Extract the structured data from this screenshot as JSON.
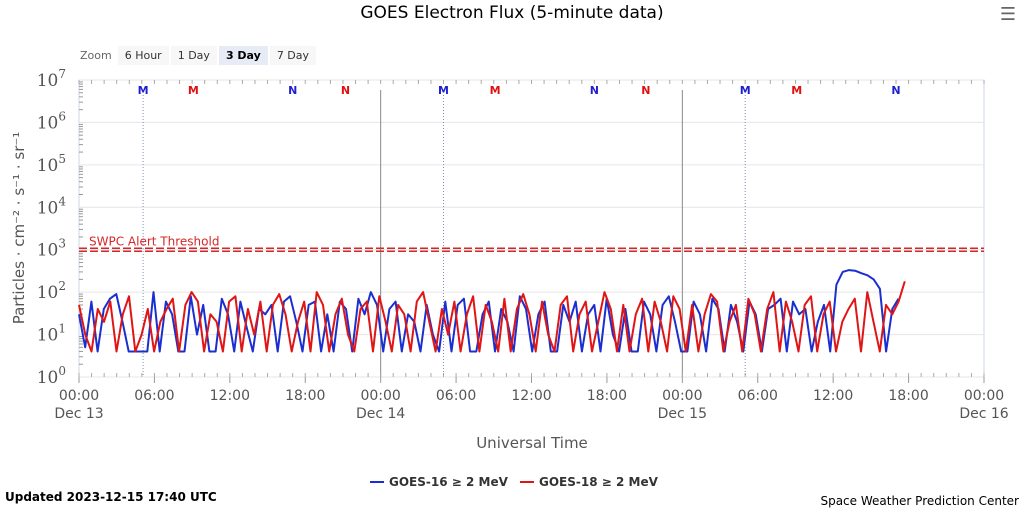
{
  "chart_data": {
    "type": "line",
    "title": "GOES Electron Flux (5-minute data)",
    "xlabel": "Universal Time",
    "ylabel": "Particles · cm⁻² · s⁻¹ · sr⁻¹",
    "yscale": "log",
    "ylim": [
      1,
      10000000
    ],
    "xlim_hours": [
      0,
      72
    ],
    "x_ticks": [
      {
        "h": 0,
        "l1": "00:00",
        "l2": "Dec 13"
      },
      {
        "h": 6,
        "l1": "06:00",
        "l2": ""
      },
      {
        "h": 12,
        "l1": "12:00",
        "l2": ""
      },
      {
        "h": 18,
        "l1": "18:00",
        "l2": ""
      },
      {
        "h": 24,
        "l1": "00:00",
        "l2": "Dec 14"
      },
      {
        "h": 30,
        "l1": "06:00",
        "l2": ""
      },
      {
        "h": 36,
        "l1": "12:00",
        "l2": ""
      },
      {
        "h": 42,
        "l1": "18:00",
        "l2": ""
      },
      {
        "h": 48,
        "l1": "00:00",
        "l2": "Dec 15"
      },
      {
        "h": 54,
        "l1": "06:00",
        "l2": ""
      },
      {
        "h": 60,
        "l1": "12:00",
        "l2": ""
      },
      {
        "h": 66,
        "l1": "18:00",
        "l2": ""
      },
      {
        "h": 72,
        "l1": "00:00",
        "l2": "Dec 16"
      }
    ],
    "y_ticks": [
      {
        "v": 1,
        "e": "0"
      },
      {
        "v": 10,
        "e": "1"
      },
      {
        "v": 100,
        "e": "2"
      },
      {
        "v": 1000,
        "e": "3"
      },
      {
        "v": 10000,
        "e": "4"
      },
      {
        "v": 100000,
        "e": "5"
      },
      {
        "v": 1000000,
        "e": "6"
      },
      {
        "v": 10000000,
        "e": "7"
      }
    ],
    "threshold": {
      "value": 1000,
      "label": "SWPC Alert Threshold",
      "color": "#d62728"
    },
    "markers": [
      {
        "h": 5.1,
        "t": "M",
        "color": "#1f1fd0",
        "line": true
      },
      {
        "h": 9.1,
        "t": "M",
        "color": "#e01010"
      },
      {
        "h": 17,
        "t": "N",
        "color": "#1f1fd0"
      },
      {
        "h": 21.2,
        "t": "N",
        "color": "#e01010"
      },
      {
        "h": 29,
        "t": "M",
        "color": "#1f1fd0",
        "line": true
      },
      {
        "h": 33.1,
        "t": "M",
        "color": "#e01010"
      },
      {
        "h": 41,
        "t": "N",
        "color": "#1f1fd0"
      },
      {
        "h": 45.1,
        "t": "N",
        "color": "#e01010"
      },
      {
        "h": 53,
        "t": "M",
        "color": "#1f1fd0",
        "line": true
      },
      {
        "h": 57.1,
        "t": "M",
        "color": "#e01010"
      },
      {
        "h": 65,
        "t": "N",
        "color": "#1f1fd0"
      }
    ],
    "series": [
      {
        "name": "GOES-16 ≥ 2 MeV",
        "color": "#1a2fd0",
        "x_start": 0,
        "x_end": 65.2,
        "values": [
          30,
          5,
          60,
          4,
          40,
          70,
          90,
          20,
          4,
          4,
          4,
          4,
          100,
          4,
          60,
          30,
          4,
          4,
          80,
          10,
          50,
          4,
          4,
          70,
          30,
          4,
          60,
          15,
          4,
          40,
          30,
          50,
          4,
          60,
          80,
          20,
          4,
          50,
          60,
          4,
          30,
          4,
          60,
          40,
          4,
          70,
          30,
          100,
          50,
          4,
          40,
          60,
          4,
          30,
          20,
          4,
          50,
          10,
          4,
          60,
          4,
          50,
          70,
          4,
          4,
          30,
          60,
          4,
          40,
          20,
          4,
          80,
          40,
          4,
          30,
          60,
          4,
          4,
          50,
          20,
          60,
          4,
          30,
          50,
          4,
          70,
          10,
          4,
          40,
          4,
          4,
          60,
          30,
          4,
          50,
          80,
          20,
          4,
          4,
          60,
          30,
          4,
          70,
          40,
          4,
          50,
          20,
          4,
          60,
          30,
          4,
          40,
          50,
          70,
          4,
          60,
          30,
          40,
          4,
          20,
          50,
          4,
          150,
          300,
          330,
          320,
          280,
          250,
          200,
          120,
          4,
          40,
          70
        ]
      },
      {
        "name": "GOES-18 ≥ 2 MeV",
        "color": "#e01515",
        "x_start": 0,
        "x_end": 65.7,
        "values": [
          50,
          10,
          4,
          40,
          20,
          60,
          4,
          30,
          80,
          4,
          10,
          40,
          4,
          20,
          40,
          70,
          4,
          50,
          100,
          60,
          4,
          30,
          20,
          4,
          60,
          80,
          4,
          40,
          10,
          60,
          4,
          50,
          90,
          30,
          4,
          20,
          60,
          4,
          100,
          50,
          4,
          30,
          70,
          10,
          4,
          40,
          60,
          4,
          80,
          20,
          4,
          50,
          30,
          4,
          60,
          100,
          20,
          4,
          40,
          10,
          60,
          4,
          30,
          80,
          4,
          50,
          20,
          4,
          70,
          4,
          40,
          90,
          30,
          4,
          60,
          10,
          4,
          50,
          80,
          4,
          30,
          60,
          4,
          20,
          100,
          40,
          4,
          50,
          4,
          30,
          70,
          4,
          60,
          20,
          4,
          80,
          40,
          4,
          50,
          4,
          30,
          90,
          60,
          4,
          20,
          50,
          4,
          70,
          30,
          4,
          40,
          100,
          4,
          60,
          20,
          4,
          50,
          80,
          4,
          30,
          60,
          4,
          20,
          40,
          70,
          4,
          100,
          20,
          4,
          50,
          30,
          60,
          180
        ]
      }
    ],
    "legend_position": "bottom-center"
  },
  "toolbar": {
    "zoom_label": "Zoom",
    "buttons": [
      "6 Hour",
      "1 Day",
      "3 Day",
      "7 Day"
    ],
    "selected": "3 Day",
    "menu_icon": "hamburger-icon"
  },
  "footer": {
    "updated": "Updated 2023-12-15 17:40 UTC",
    "credit": "Space Weather Prediction Center"
  }
}
